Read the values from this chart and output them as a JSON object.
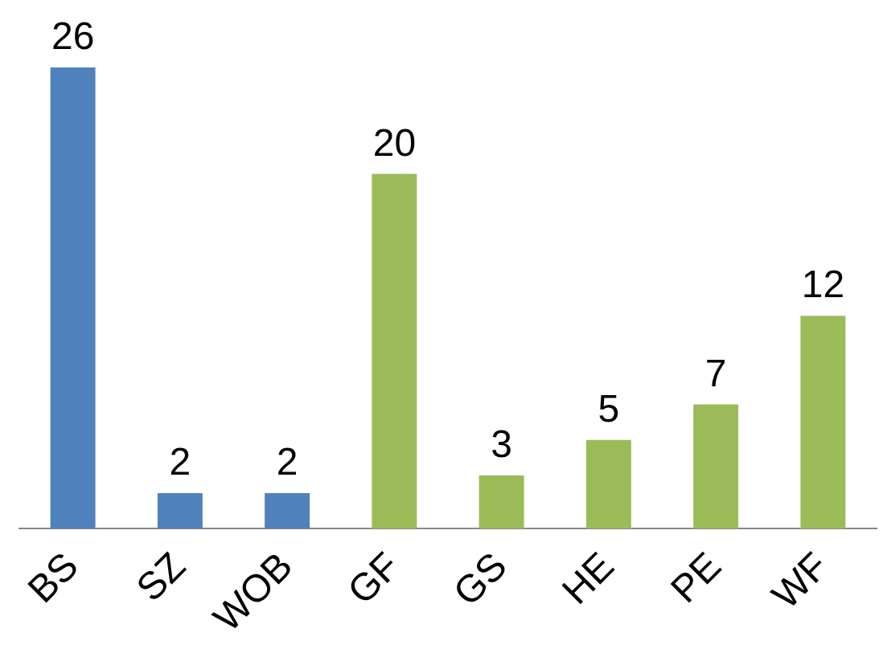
{
  "chart_data": {
    "type": "bar",
    "categories": [
      "BS",
      "SZ",
      "WOB",
      "GF",
      "GS",
      "HE",
      "PE",
      "WF"
    ],
    "values": [
      26,
      2,
      2,
      20,
      3,
      5,
      7,
      12
    ],
    "colors": [
      "#4f81bd",
      "#4f81bd",
      "#4f81bd",
      "#9bbb59",
      "#9bbb59",
      "#9bbb59",
      "#9bbb59",
      "#9bbb59"
    ],
    "data_labels": true,
    "grid": false,
    "legend": false
  }
}
